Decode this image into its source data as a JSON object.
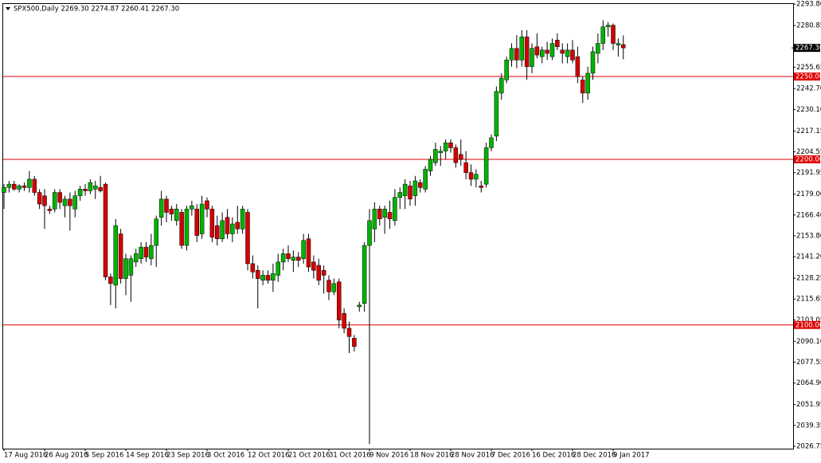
{
  "chart_data": {
    "type": "candlestick",
    "title": "SPX500,Daily  2269.30 2274.87 2260.41 2267.30",
    "x": [
      "17 Aug 2016",
      null,
      null,
      null,
      null,
      null,
      null,
      null,
      "26 Aug 2016",
      null,
      null,
      null,
      null,
      null,
      null,
      null,
      "5 Sep 2016",
      null,
      null,
      null,
      null,
      null,
      null,
      null,
      "14 Sep 2016",
      null,
      null,
      null,
      null,
      null,
      null,
      null,
      "23 Sep 2016",
      null,
      null,
      null,
      null,
      null,
      null,
      null,
      "3 Oct 2016",
      null,
      null,
      null,
      null,
      null,
      null,
      null,
      "12 Oct 2016",
      null,
      null,
      null,
      null,
      null,
      null,
      null,
      "21 Oct 2016",
      null,
      null,
      null,
      null,
      null,
      null,
      null,
      "31 Oct 2016",
      null,
      null,
      null,
      null,
      null,
      null,
      null,
      "9 Nov 2016",
      null,
      null,
      null,
      null,
      null,
      null,
      null,
      "18 Nov 2016",
      null,
      null,
      null,
      null,
      null,
      null,
      null,
      "28 Nov 2016",
      null,
      null,
      null,
      null,
      null,
      null,
      null,
      "7 Dec 2016",
      null,
      null,
      null,
      null,
      null,
      null,
      null,
      "16 Dec 2016",
      null,
      null,
      null,
      null,
      null,
      null,
      null,
      "28 Dec 2016",
      null,
      null,
      null,
      null,
      null,
      null,
      null,
      "9 Jan 2017",
      null,
      null
    ],
    "candles": [
      [
        2180,
        2185,
        2170,
        2183
      ],
      [
        2183,
        2187,
        2180,
        2185
      ],
      [
        2185,
        2187,
        2181,
        2182
      ],
      [
        2182,
        2185,
        2180,
        2184
      ],
      [
        2184,
        2186,
        2181,
        2183
      ],
      [
        2183,
        2193,
        2180,
        2188
      ],
      [
        2188,
        2190,
        2178,
        2180
      ],
      [
        2180,
        2182,
        2170,
        2173
      ],
      [
        2178,
        2182,
        2158,
        2172
      ],
      [
        2170,
        2172,
        2167,
        2169
      ],
      [
        2170,
        2182,
        2168,
        2180
      ],
      [
        2180,
        2182,
        2170,
        2174
      ],
      [
        2172,
        2178,
        2165,
        2176
      ],
      [
        2176,
        2180,
        2157,
        2172
      ],
      [
        2170,
        2181,
        2165,
        2178
      ],
      [
        2178,
        2184,
        2175,
        2182
      ],
      [
        2182,
        2185,
        2178,
        2181
      ],
      [
        2181,
        2188,
        2179,
        2186
      ],
      [
        2182,
        2187,
        2176,
        2184
      ],
      [
        2183,
        2190,
        2180,
        2181
      ],
      [
        2185,
        2186,
        2127,
        2129
      ],
      [
        2129,
        2131,
        2112,
        2125
      ],
      [
        2124,
        2164,
        2110,
        2160
      ],
      [
        2155,
        2158,
        2125,
        2128
      ],
      [
        2128,
        2143,
        2118,
        2140
      ],
      [
        2130,
        2142,
        2114,
        2140
      ],
      [
        2138,
        2146,
        2135,
        2143
      ],
      [
        2140,
        2150,
        2137,
        2147
      ],
      [
        2147,
        2150,
        2138,
        2141
      ],
      [
        2140,
        2155,
        2136,
        2148
      ],
      [
        2148,
        2166,
        2135,
        2164
      ],
      [
        2165,
        2181,
        2160,
        2176
      ],
      [
        2176,
        2178,
        2162,
        2168
      ],
      [
        2170,
        2172,
        2163,
        2167
      ],
      [
        2163,
        2173,
        2160,
        2170
      ],
      [
        2168,
        2170,
        2146,
        2148
      ],
      [
        2148,
        2172,
        2145,
        2170
      ],
      [
        2170,
        2175,
        2166,
        2172
      ],
      [
        2170,
        2173,
        2150,
        2154
      ],
      [
        2155,
        2178,
        2152,
        2173
      ],
      [
        2175,
        2177,
        2165,
        2170
      ],
      [
        2170,
        2172,
        2150,
        2153
      ],
      [
        2160,
        2166,
        2148,
        2152
      ],
      [
        2152,
        2168,
        2150,
        2163
      ],
      [
        2165,
        2170,
        2152,
        2155
      ],
      [
        2155,
        2165,
        2150,
        2161
      ],
      [
        2162,
        2172,
        2155,
        2158
      ],
      [
        2158,
        2172,
        2155,
        2170
      ],
      [
        2168,
        2170,
        2133,
        2137
      ],
      [
        2137,
        2142,
        2128,
        2132
      ],
      [
        2133,
        2136,
        2110,
        2128
      ],
      [
        2127,
        2133,
        2124,
        2130
      ],
      [
        2130,
        2133,
        2125,
        2127
      ],
      [
        2127,
        2137,
        2120,
        2131
      ],
      [
        2130,
        2143,
        2126,
        2138
      ],
      [
        2138,
        2146,
        2133,
        2143
      ],
      [
        2143,
        2148,
        2138,
        2140
      ],
      [
        2139,
        2145,
        2132,
        2141
      ],
      [
        2141,
        2144,
        2135,
        2139
      ],
      [
        2140,
        2155,
        2137,
        2151
      ],
      [
        2152,
        2155,
        2132,
        2135
      ],
      [
        2138,
        2142,
        2128,
        2133
      ],
      [
        2136,
        2140,
        2124,
        2127
      ],
      [
        2133,
        2136,
        2119,
        2130
      ],
      [
        2127,
        2130,
        2115,
        2120
      ],
      [
        2120,
        2128,
        2118,
        2125
      ],
      [
        2126,
        2128,
        2098,
        2103
      ],
      [
        2107,
        2110,
        2095,
        2098
      ],
      [
        2098,
        2102,
        2083,
        2093
      ],
      [
        2092,
        2094,
        2084,
        2087
      ],
      [
        2111,
        2114,
        2108,
        2112
      ],
      [
        2113,
        2150,
        2108,
        2148
      ],
      [
        2148,
        2170,
        2028,
        2163
      ],
      [
        2158,
        2174,
        2150,
        2170
      ],
      [
        2170,
        2172,
        2160,
        2164
      ],
      [
        2165,
        2172,
        2155,
        2170
      ],
      [
        2168,
        2175,
        2158,
        2164
      ],
      [
        2163,
        2182,
        2160,
        2177
      ],
      [
        2177,
        2183,
        2170,
        2180
      ],
      [
        2178,
        2188,
        2170,
        2185
      ],
      [
        2184,
        2187,
        2172,
        2176
      ],
      [
        2178,
        2190,
        2172,
        2187
      ],
      [
        2186,
        2188,
        2180,
        2183
      ],
      [
        2182,
        2196,
        2180,
        2194
      ],
      [
        2193,
        2202,
        2190,
        2200
      ],
      [
        2198,
        2210,
        2196,
        2206
      ],
      [
        2204,
        2208,
        2196,
        2205
      ],
      [
        2205,
        2212,
        2200,
        2210
      ],
      [
        2210,
        2212,
        2204,
        2207
      ],
      [
        2207,
        2209,
        2195,
        2198
      ],
      [
        2203,
        2212,
        2196,
        2200
      ],
      [
        2198,
        2205,
        2188,
        2192
      ],
      [
        2192,
        2197,
        2184,
        2188
      ],
      [
        2188,
        2194,
        2183,
        2191
      ],
      [
        2184,
        2187,
        2180,
        2183
      ],
      [
        2185,
        2210,
        2183,
        2207
      ],
      [
        2207,
        2215,
        2205,
        2213
      ],
      [
        2214,
        2244,
        2211,
        2241
      ],
      [
        2240,
        2252,
        2236,
        2249
      ],
      [
        2248,
        2262,
        2246,
        2260
      ],
      [
        2260,
        2270,
        2256,
        2267
      ],
      [
        2267,
        2275,
        2255,
        2260
      ],
      [
        2260,
        2278,
        2256,
        2274
      ],
      [
        2274,
        2278,
        2248,
        2256
      ],
      [
        2256,
        2270,
        2252,
        2267
      ],
      [
        2268,
        2276,
        2261,
        2263
      ],
      [
        2262,
        2268,
        2258,
        2266
      ],
      [
        2266,
        2271,
        2260,
        2264
      ],
      [
        2262,
        2273,
        2260,
        2270
      ],
      [
        2272,
        2276,
        2266,
        2268
      ],
      [
        2266,
        2270,
        2258,
        2264
      ],
      [
        2262,
        2270,
        2258,
        2266
      ],
      [
        2266,
        2272,
        2258,
        2260
      ],
      [
        2262,
        2268,
        2246,
        2250
      ],
      [
        2248,
        2250,
        2234,
        2240
      ],
      [
        2240,
        2256,
        2236,
        2252
      ],
      [
        2252,
        2268,
        2248,
        2265
      ],
      [
        2264,
        2276,
        2258,
        2270
      ],
      [
        2270,
        2284,
        2266,
        2280
      ],
      [
        2280,
        2283,
        2274,
        2281
      ],
      [
        2281,
        2282,
        2266,
        2270
      ],
      [
        2269,
        2273,
        2262,
        2270
      ],
      [
        2269.3,
        2274.87,
        2260.41,
        2267.3
      ]
    ],
    "up_color": "#00b400",
    "down_color": "#d40000",
    "ylim": [
      2025.3,
      2294.3
    ],
    "yticks": [
      {
        "value": 2293.8,
        "label": "2293.80"
      },
      {
        "value": 2280.85,
        "label": "2280.85"
      },
      {
        "value": 2255.65,
        "label": "2255.65"
      },
      {
        "value": 2242.7,
        "label": "2242.70"
      },
      {
        "value": 2230.1,
        "label": "2230.10"
      },
      {
        "value": 2217.15,
        "label": "2217.15"
      },
      {
        "value": 2204.55,
        "label": "2204.55"
      },
      {
        "value": 2191.95,
        "label": "2191.95"
      },
      {
        "value": 2179,
        "label": "2179.00"
      },
      {
        "value": 2166.4,
        "label": "2166.40"
      },
      {
        "value": 2153.8,
        "label": "2153.80"
      },
      {
        "value": 2141.2,
        "label": "2141.20"
      },
      {
        "value": 2128.25,
        "label": "2128.25"
      },
      {
        "value": 2115.65,
        "label": "2115.65"
      },
      {
        "value": 2103.05,
        "label": "2103.05"
      },
      {
        "value": 2090.1,
        "label": "2090.10"
      },
      {
        "value": 2077.55,
        "label": "2077.55"
      },
      {
        "value": 2064.9,
        "label": "2064.90"
      },
      {
        "value": 2051.95,
        "label": "2051.95"
      },
      {
        "value": 2039.35,
        "label": "2039.35"
      },
      {
        "value": 2026.75,
        "label": "2026.75"
      }
    ],
    "hlines": [
      {
        "value": 2250,
        "label": "2250.00"
      },
      {
        "value": 2200,
        "label": "2200.00"
      },
      {
        "value": 2100,
        "label": "2100.00"
      }
    ],
    "hline_color": "#e00000",
    "last_price": {
      "value": 2267.3,
      "label": "2267.30"
    }
  }
}
